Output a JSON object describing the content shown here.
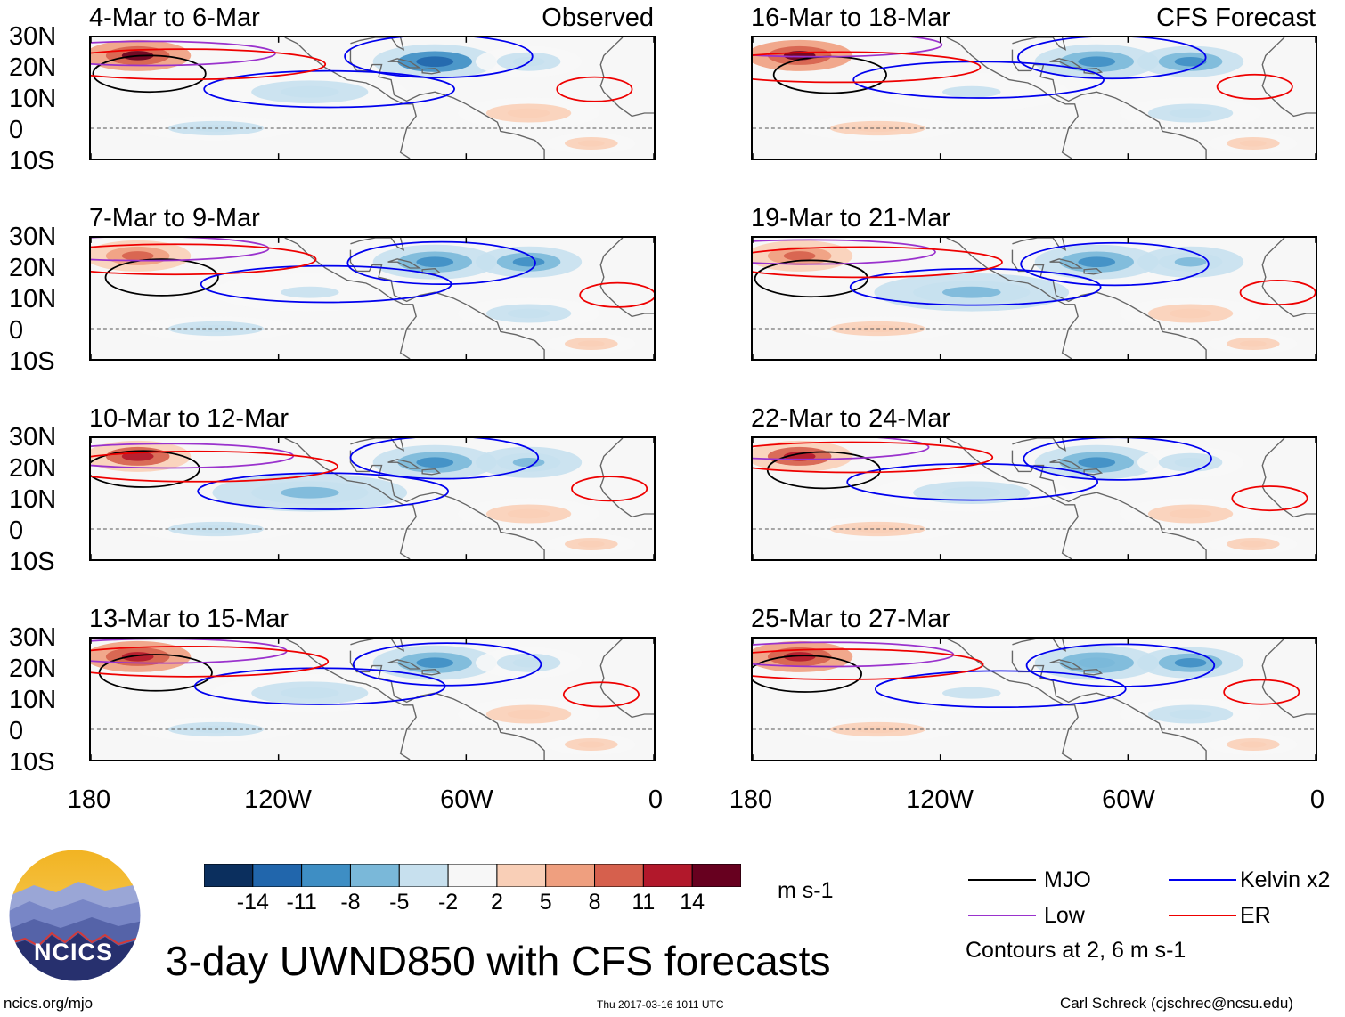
{
  "chart_data": {
    "type": "map",
    "title": "3-day UWND850 with CFS forecasts",
    "variable": "UWND850",
    "units": "m s-1",
    "lat_ticks": [
      "30N",
      "20N",
      "10N",
      "0",
      "10S"
    ],
    "lon_ticks": [
      "180",
      "120W",
      "60W",
      "0"
    ],
    "lat_range": [
      -10,
      30
    ],
    "lon_range": [
      -180,
      0
    ],
    "colorbar": {
      "levels": [
        -14,
        -11,
        -8,
        -5,
        -2,
        2,
        5,
        8,
        11,
        14
      ],
      "labels": [
        "-14",
        "-11",
        "-8",
        "-5",
        "-2",
        "2",
        "5",
        "8",
        "11",
        "14"
      ],
      "colors": [
        "#0b2f5e",
        "#2166ac",
        "#3e8ec4",
        "#7ab8d9",
        "#c7e0ee",
        "#f7f7f7",
        "#f9cfb7",
        "#ef9f7f",
        "#d6604d",
        "#b2182b",
        "#67001f"
      ]
    },
    "left_column_label": "Observed",
    "right_column_label": "CFS Forecast",
    "panels": [
      {
        "period": "4-Mar to 6-Mar",
        "source": "observed"
      },
      {
        "period": "7-Mar to 9-Mar",
        "source": "observed"
      },
      {
        "period": "10-Mar to 12-Mar",
        "source": "observed"
      },
      {
        "period": "13-Mar to 15-Mar",
        "source": "observed"
      },
      {
        "period": "16-Mar to 18-Mar",
        "source": "forecast"
      },
      {
        "period": "19-Mar to 21-Mar",
        "source": "forecast"
      },
      {
        "period": "22-Mar to 24-Mar",
        "source": "forecast"
      },
      {
        "period": "25-Mar to 27-Mar",
        "source": "forecast"
      }
    ],
    "legend": [
      {
        "label": "MJO",
        "color": "#000000"
      },
      {
        "label": "Kelvin x2",
        "color": "#0000ee"
      },
      {
        "label": "Low",
        "color": "#9a32cd"
      },
      {
        "label": "ER",
        "color": "#ee0000"
      }
    ],
    "contour_note": "Contours at 2, 6 m s-1"
  },
  "logo": {
    "text": "NCICS"
  },
  "footer": {
    "website": "ncics.org/mjo",
    "timestamp": "Thu 2017-03-16 1011 UTC",
    "author": "Carl Schreck (cjschrec@ncsu.edu)"
  }
}
